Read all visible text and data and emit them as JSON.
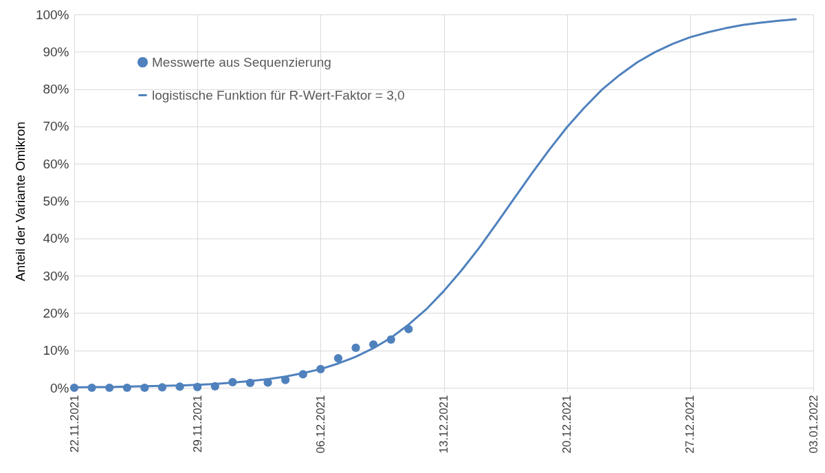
{
  "chart_data": {
    "type": "line",
    "ylabel": "Anteil der Variante Omikron",
    "series": [
      {
        "name": "Messwerte aus Sequenzierung",
        "type": "scatter",
        "color": "#4f81bd",
        "marker": "circle",
        "x": [
          "2021-11-22",
          "2021-11-23",
          "2021-11-24",
          "2021-11-25",
          "2021-11-26",
          "2021-11-27",
          "2021-11-28",
          "2021-11-29",
          "2021-11-30",
          "2021-12-01",
          "2021-12-02",
          "2021-12-03",
          "2021-12-04",
          "2021-12-05",
          "2021-12-06",
          "2021-12-07",
          "2021-12-08",
          "2021-12-09",
          "2021-12-10",
          "2021-12-11"
        ],
        "values": [
          0,
          0,
          0,
          0,
          0,
          0.1,
          0.3,
          0.2,
          0.4,
          1.5,
          1.3,
          1.4,
          2.1,
          3.6,
          5.0,
          7.9,
          10.7,
          11.6,
          12.9,
          15.7
        ]
      },
      {
        "name": "logistische Funktion für R-Wert-Faktor = 3,0",
        "type": "line",
        "color": "#4f81bd",
        "line_style": "solid",
        "x": [
          "2021-11-22",
          "2021-11-23",
          "2021-11-24",
          "2021-11-25",
          "2021-11-26",
          "2021-11-27",
          "2021-11-28",
          "2021-11-29",
          "2021-11-30",
          "2021-12-01",
          "2021-12-02",
          "2021-12-03",
          "2021-12-04",
          "2021-12-05",
          "2021-12-06",
          "2021-12-07",
          "2021-12-08",
          "2021-12-09",
          "2021-12-10",
          "2021-12-11",
          "2021-12-12",
          "2021-12-13",
          "2021-12-14",
          "2021-12-15",
          "2021-12-16",
          "2021-12-17",
          "2021-12-18",
          "2021-12-19",
          "2021-12-20",
          "2021-12-21",
          "2021-12-22",
          "2021-12-23",
          "2021-12-24",
          "2021-12-25",
          "2021-12-26",
          "2021-12-27",
          "2021-12-28",
          "2021-12-29",
          "2021-12-30",
          "2021-12-31",
          "2022-01-01",
          "2022-01-02"
        ],
        "values": [
          0.1,
          0.2,
          0.2,
          0.3,
          0.4,
          0.5,
          0.6,
          0.8,
          1.0,
          1.4,
          1.8,
          2.3,
          3.0,
          3.9,
          5.0,
          6.5,
          8.3,
          10.6,
          13.4,
          16.9,
          21.0,
          25.9,
          31.4,
          37.4,
          44.0,
          50.7,
          57.4,
          63.8,
          69.8,
          75.1,
          79.9,
          83.8,
          87.2,
          89.9,
          92.1,
          93.9,
          95.2,
          96.3,
          97.2,
          97.8,
          98.3,
          98.7
        ]
      }
    ],
    "xlim": [
      "2021-11-22",
      "2022-01-03"
    ],
    "xticks": [
      {
        "value": "2021-11-22",
        "label": "22.11.2021"
      },
      {
        "value": "2021-11-29",
        "label": "29.11.2021"
      },
      {
        "value": "2021-12-06",
        "label": "06.12.2021"
      },
      {
        "value": "2021-12-13",
        "label": "13.12.2021"
      },
      {
        "value": "2021-12-20",
        "label": "20.12.2021"
      },
      {
        "value": "2021-12-27",
        "label": "27.12.2021"
      },
      {
        "value": "2022-01-03",
        "label": "03.01.2022"
      }
    ],
    "ylim": [
      0,
      100
    ],
    "yticks": [
      {
        "value": 0,
        "label": "0%"
      },
      {
        "value": 10,
        "label": "10%"
      },
      {
        "value": 20,
        "label": "20%"
      },
      {
        "value": 30,
        "label": "30%"
      },
      {
        "value": 40,
        "label": "40%"
      },
      {
        "value": 50,
        "label": "50%"
      },
      {
        "value": 60,
        "label": "60%"
      },
      {
        "value": 70,
        "label": "70%"
      },
      {
        "value": 80,
        "label": "80%"
      },
      {
        "value": 90,
        "label": "90%"
      },
      {
        "value": 100,
        "label": "100%"
      }
    ],
    "grid": true,
    "legend": "top left"
  }
}
